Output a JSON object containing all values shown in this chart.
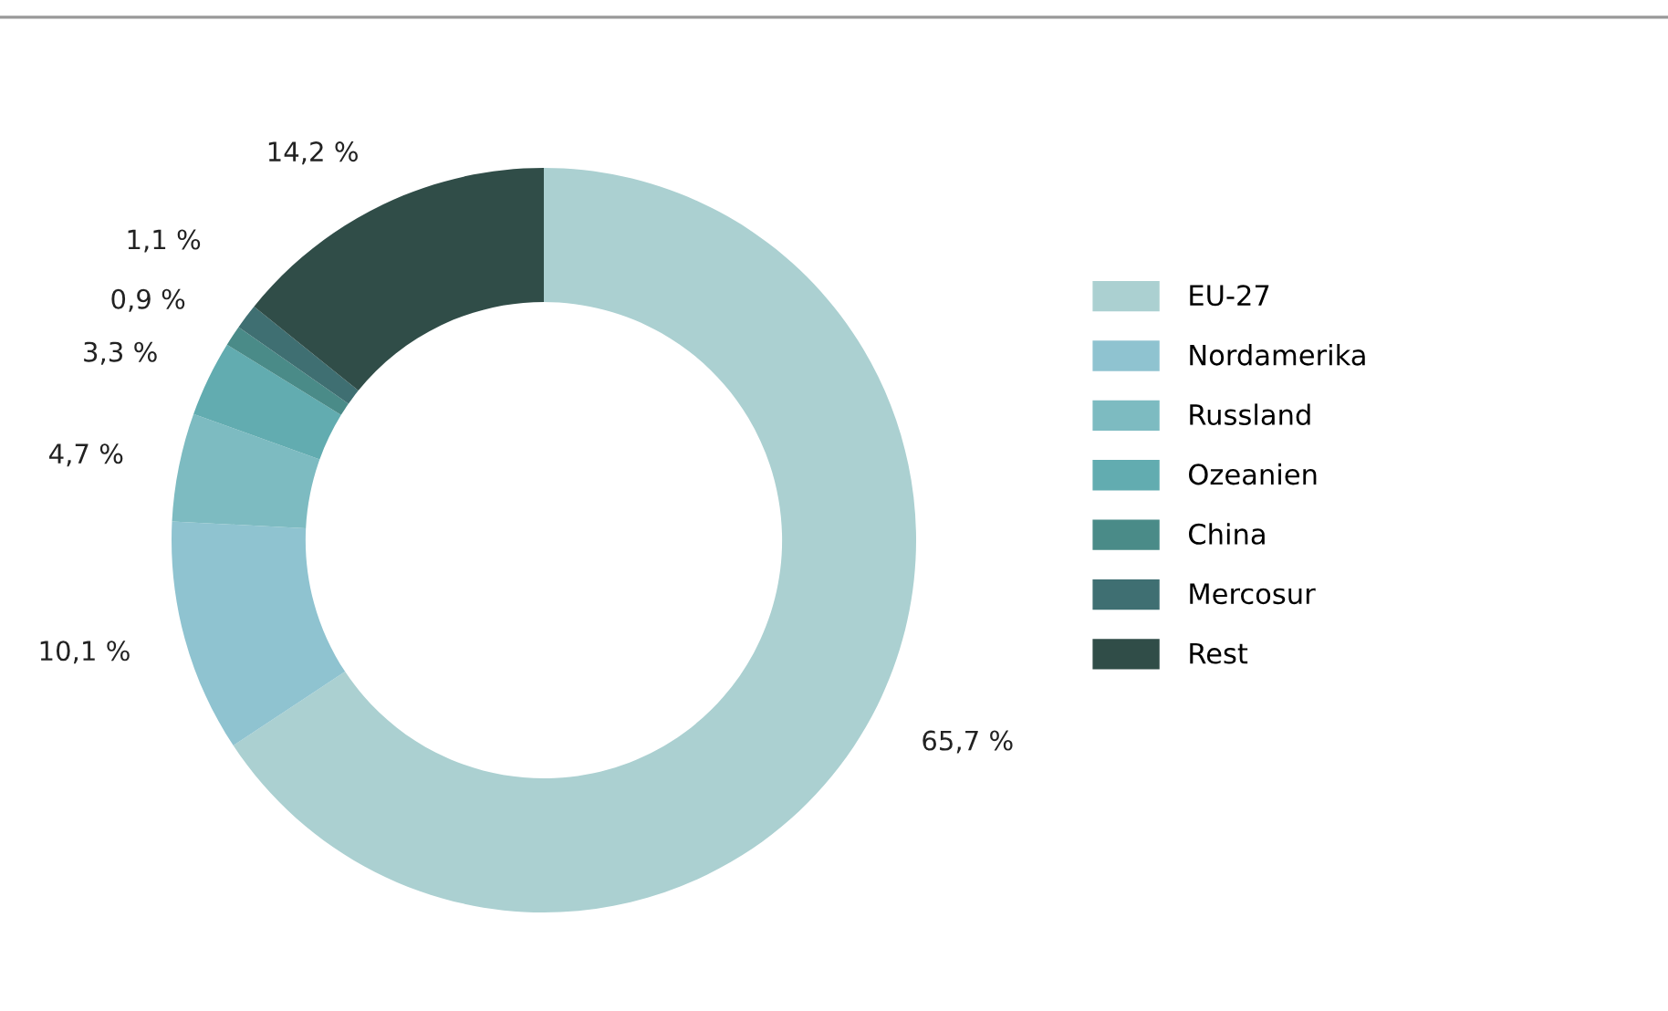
{
  "chart_data": {
    "type": "donut",
    "categories": [
      "EU-27",
      "Nordamerika",
      "Russland",
      "Ozeanien",
      "China",
      "Mercosur",
      "Rest"
    ],
    "values": [
      65.7,
      10.1,
      4.7,
      3.3,
      0.9,
      1.1,
      14.2
    ],
    "value_labels": [
      "65,7 %",
      "10,1 %",
      "4,7 %",
      "3,3 %",
      "0,9 %",
      "1,1 %",
      "14,2 %"
    ],
    "colors": [
      "#abd0d1",
      "#8fc3d0",
      "#7dbbc1",
      "#62acb0",
      "#4a8b88",
      "#3f6f72",
      "#304d48"
    ],
    "legend": "right"
  }
}
